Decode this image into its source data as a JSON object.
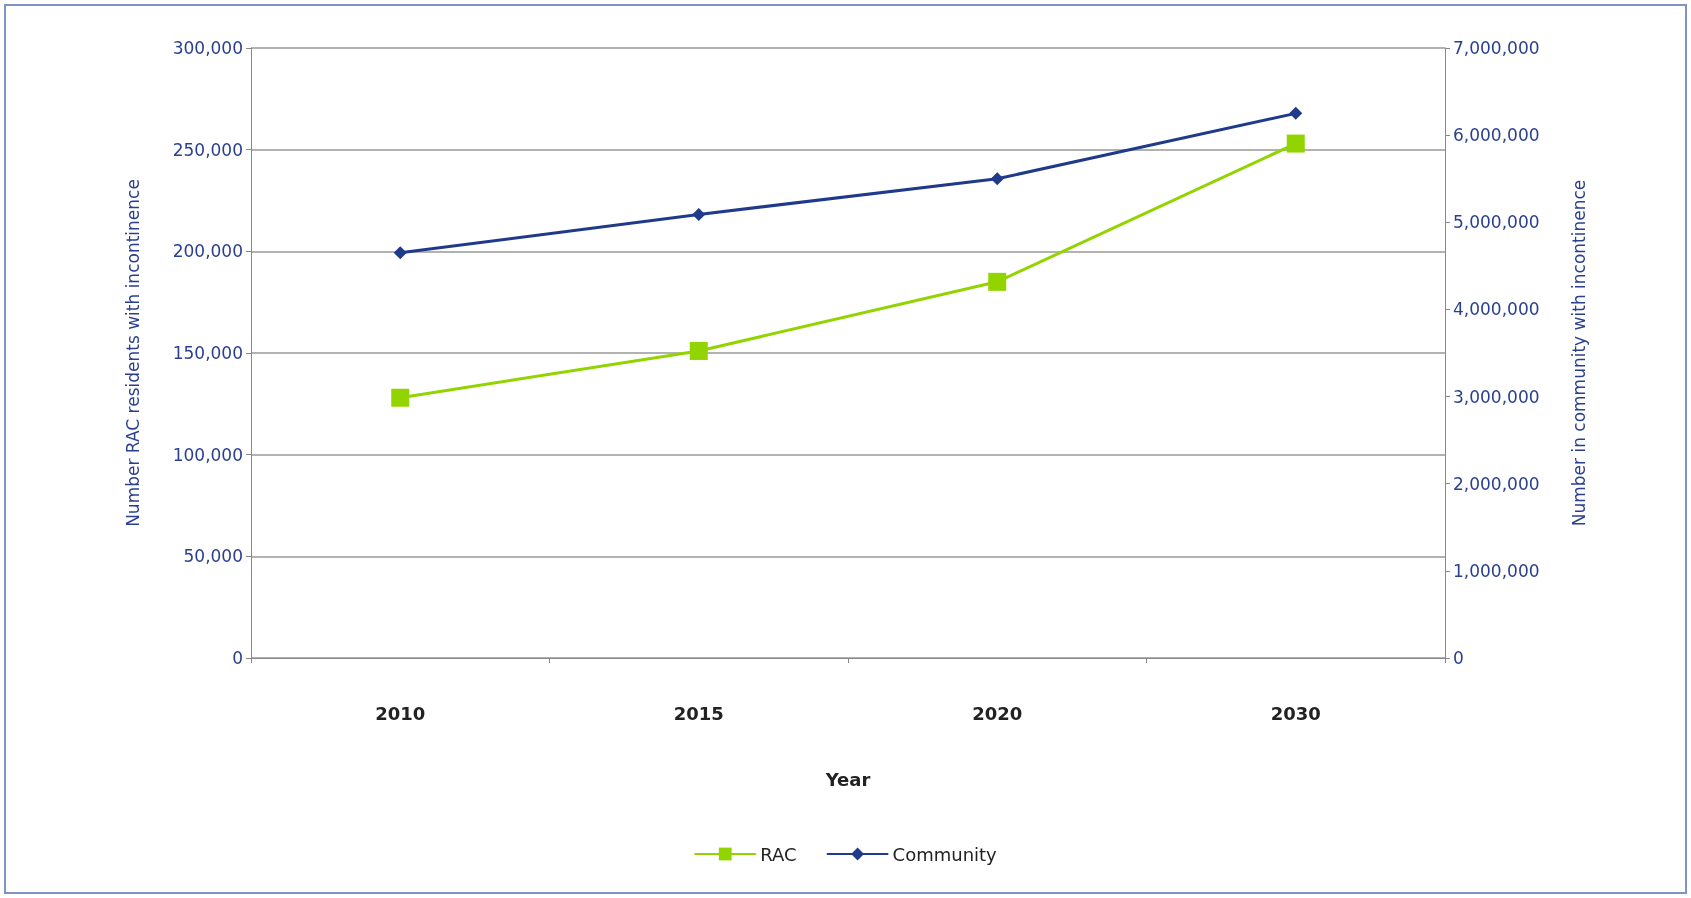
{
  "chart_data": {
    "type": "line",
    "xlabel": "Year",
    "ylabel": "Number RAC residents with incontinence",
    "y2label": "Number in community with incontinence",
    "categories": [
      "2010",
      "2015",
      "2020",
      "2030"
    ],
    "series": [
      {
        "name": "RAC",
        "color": "#92d400",
        "marker": "square",
        "values": [
          128000,
          151000,
          185000,
          253000
        ]
      },
      {
        "name": "Community",
        "color": "#1f3a8a",
        "marker": "diamond",
        "axis": "y2",
        "values": [
          4650000,
          5090000,
          5500000,
          6250000
        ]
      }
    ],
    "ylim": [
      0,
      300000
    ],
    "yticks": [
      0,
      {
        "value": 50000,
        "label": "50,000"
      },
      {
        "value": 100000,
        "label": "100,000"
      },
      {
        "value": 150000,
        "label": "150,000"
      },
      {
        "value": 200000,
        "label": "200,000"
      },
      {
        "value": 250000,
        "label": "250,000"
      },
      {
        "value": 300000,
        "label": "300,000"
      }
    ],
    "y2lim": [
      0,
      7000000
    ],
    "y2ticks": [
      0,
      {
        "value": 1000000,
        "label": "1,000,000"
      },
      {
        "value": 2000000,
        "label": "2,000,000"
      },
      {
        "value": 3000000,
        "label": "3,000,000"
      },
      {
        "value": 4000000,
        "label": "4,000,000"
      },
      {
        "value": 5000000,
        "label": "5,000,000"
      },
      {
        "value": 6000000,
        "label": "6,000,000"
      },
      {
        "value": 7000000,
        "label": "7,000,000"
      }
    ],
    "grid": "y",
    "legend": "bottom",
    "line_style": "solid"
  }
}
